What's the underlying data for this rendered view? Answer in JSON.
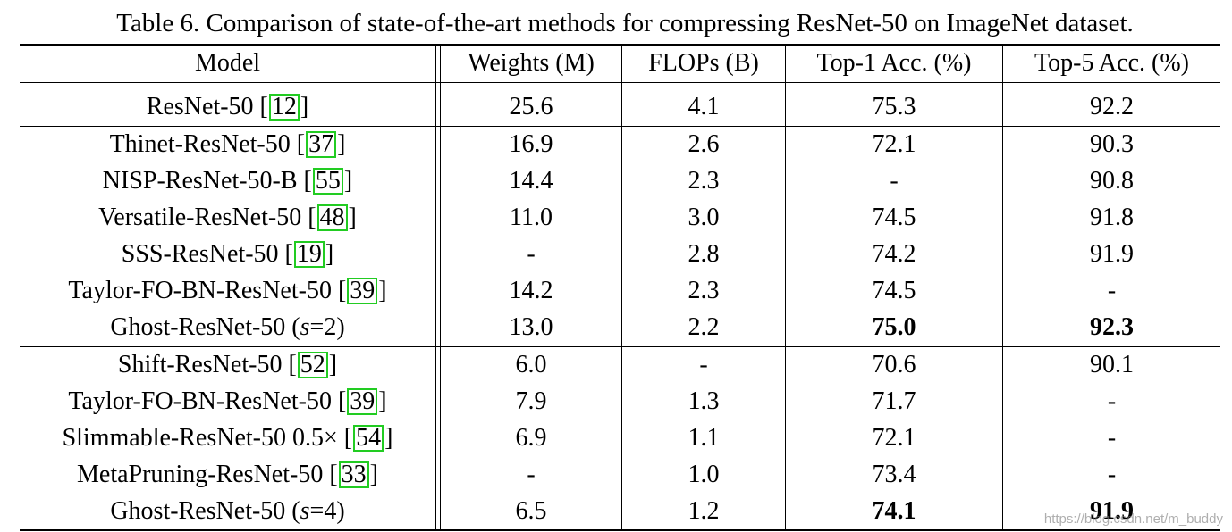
{
  "caption": "Table 6. Comparison of state-of-the-art methods for compressing ResNet-50 on ImageNet dataset.",
  "headers": [
    "Model",
    "Weights (M)",
    "FLOPs (B)",
    "Top-1 Acc. (%)",
    "Top-5 Acc. (%)"
  ],
  "citation_box_color": "#22cc22",
  "rows": [
    {
      "model": "ResNet-50 [",
      "cite": "12",
      "suffix": "]",
      "weights": "25.6",
      "flops": "4.1",
      "top1": "75.3",
      "top5": "92.2"
    },
    {
      "model": "Thinet-ResNet-50 [",
      "cite": "37",
      "suffix": "]",
      "weights": "16.9",
      "flops": "2.6",
      "top1": "72.1",
      "top5": "90.3"
    },
    {
      "model": "NISP-ResNet-50-B [",
      "cite": "55",
      "suffix": "]",
      "weights": "14.4",
      "flops": "2.3",
      "top1": "-",
      "top5": "90.8"
    },
    {
      "model": "Versatile-ResNet-50 [",
      "cite": "48",
      "suffix": "]",
      "weights": "11.0",
      "flops": "3.0",
      "top1": "74.5",
      "top5": "91.8"
    },
    {
      "model": "SSS-ResNet-50 [",
      "cite": "19",
      "suffix": "]",
      "weights": "-",
      "flops": "2.8",
      "top1": "74.2",
      "top5": "91.9"
    },
    {
      "model": "Taylor-FO-BN-ResNet-50 [",
      "cite": "39",
      "suffix": "]",
      "weights": "14.2",
      "flops": "2.3",
      "top1": "74.5",
      "top5": "-"
    },
    {
      "model": "Ghost-ResNet-50 (s=2)",
      "cite": "",
      "suffix": "",
      "weights": "13.0",
      "flops": "2.2",
      "top1": "75.0",
      "top5": "92.3"
    },
    {
      "model": "Shift-ResNet-50 [",
      "cite": "52",
      "suffix": "]",
      "weights": "6.0",
      "flops": "-",
      "top1": "70.6",
      "top5": "90.1"
    },
    {
      "model": "Taylor-FO-BN-ResNet-50 [",
      "cite": "39",
      "suffix": "]",
      "weights": "7.9",
      "flops": "1.3",
      "top1": "71.7",
      "top5": "-"
    },
    {
      "model": "Slimmable-ResNet-50 0.5× [",
      "cite": "54",
      "suffix": "]",
      "weights": "6.9",
      "flops": "1.1",
      "top1": "72.1",
      "top5": "-"
    },
    {
      "model": "MetaPruning-ResNet-50 [",
      "cite": "33",
      "suffix": "]",
      "weights": "-",
      "flops": "1.0",
      "top1": "73.4",
      "top5": "-"
    },
    {
      "model": "Ghost-ResNet-50 (s=4)",
      "cite": "",
      "suffix": "",
      "weights": "6.5",
      "flops": "1.2",
      "top1": "74.1",
      "top5": "91.9"
    }
  ],
  "bold_cells": [
    {
      "row": 6,
      "col": "top1"
    },
    {
      "row": 6,
      "col": "top5"
    },
    {
      "row": 11,
      "col": "top1"
    },
    {
      "row": 11,
      "col": "top5"
    }
  ],
  "watermark": "https://blog.csdn.net/m_buddy"
}
